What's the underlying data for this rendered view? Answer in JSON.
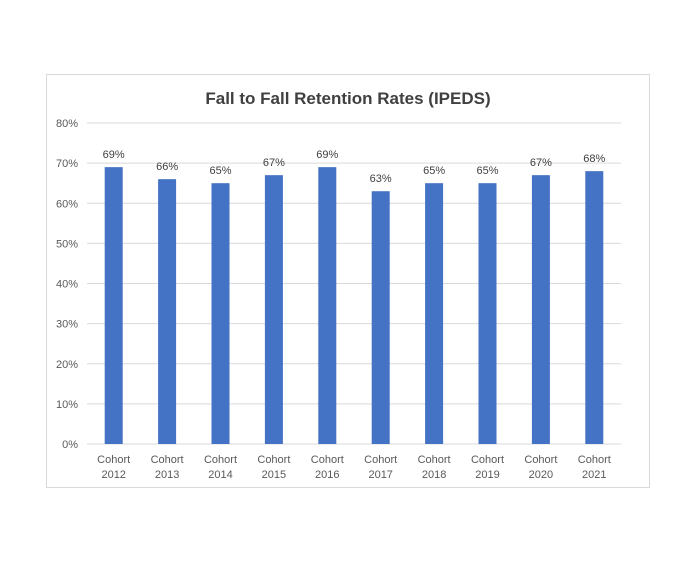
{
  "chart_data": {
    "type": "bar",
    "title": "Fall to Fall Retention Rates (IPEDS)",
    "categories": [
      [
        "Cohort",
        "2012"
      ],
      [
        "Cohort",
        "2013"
      ],
      [
        "Cohort",
        "2014"
      ],
      [
        "Cohort",
        "2015"
      ],
      [
        "Cohort",
        "2016"
      ],
      [
        "Cohort",
        "2017"
      ],
      [
        "Cohort",
        "2018"
      ],
      [
        "Cohort",
        "2019"
      ],
      [
        "Cohort",
        "2020"
      ],
      [
        "Cohort",
        "2021"
      ]
    ],
    "values": [
      69,
      66,
      65,
      67,
      69,
      63,
      65,
      65,
      67,
      68
    ],
    "data_labels": [
      "69%",
      "66%",
      "65%",
      "67%",
      "69%",
      "63%",
      "65%",
      "65%",
      "67%",
      "68%"
    ],
    "y_ticks": [
      "0%",
      "10%",
      "20%",
      "30%",
      "40%",
      "50%",
      "60%",
      "70%",
      "80%"
    ],
    "ylim": [
      0,
      80
    ],
    "grid": true,
    "legend": "none",
    "colors": {
      "bar": "#4472C4",
      "grid": "#d9d9d9",
      "text": "#595959"
    }
  }
}
